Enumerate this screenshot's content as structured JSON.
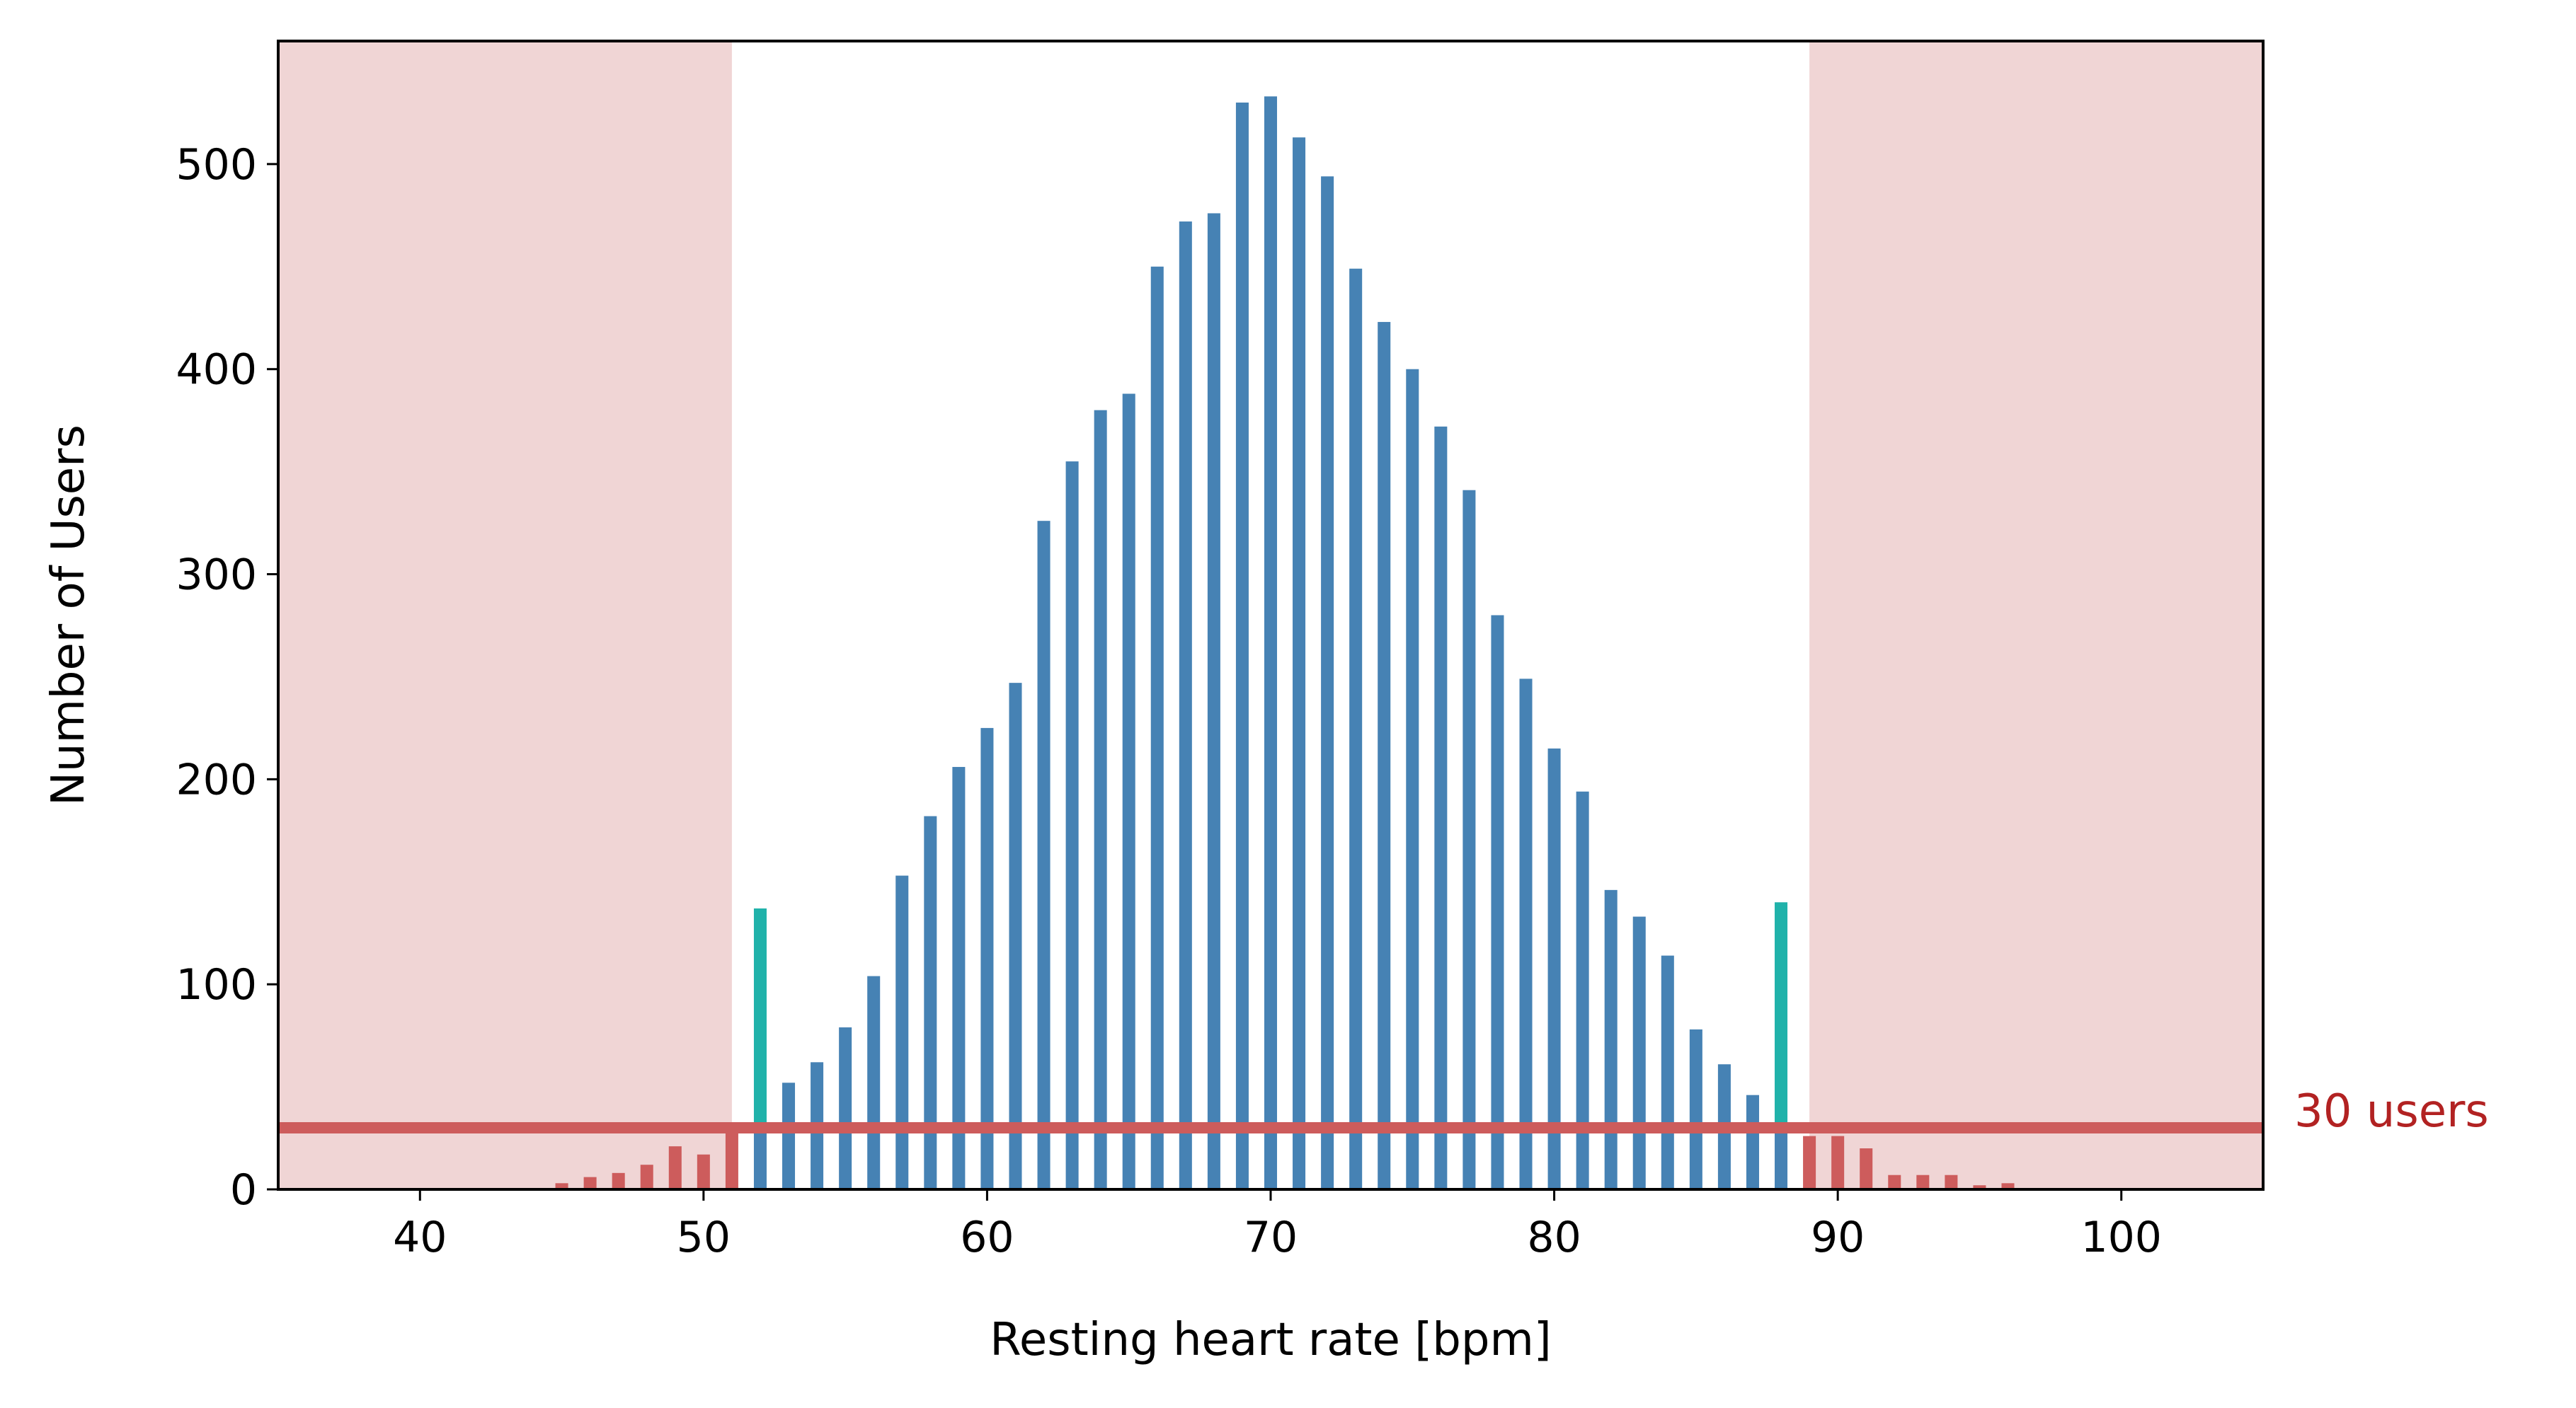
{
  "chart_data": {
    "type": "bar",
    "title": "",
    "xlabel": "Resting heart rate [bpm]",
    "ylabel": "Number of Users",
    "xlim": [
      35,
      105
    ],
    "ylim": [
      0,
      560
    ],
    "xticks": [
      40,
      50,
      60,
      70,
      80,
      90,
      100
    ],
    "yticks": [
      0,
      100,
      200,
      300,
      400,
      500
    ],
    "grid": false,
    "x": [
      45,
      46,
      47,
      48,
      49,
      50,
      51,
      52,
      53,
      54,
      55,
      56,
      57,
      58,
      59,
      60,
      61,
      62,
      63,
      64,
      65,
      66,
      67,
      68,
      69,
      70,
      71,
      72,
      73,
      74,
      75,
      76,
      77,
      78,
      79,
      80,
      81,
      82,
      83,
      84,
      85,
      86,
      87,
      88,
      89,
      90,
      91,
      92,
      93,
      94,
      95,
      96
    ],
    "values": [
      3,
      6,
      8,
      12,
      21,
      17,
      28,
      137,
      52,
      62,
      79,
      104,
      153,
      182,
      206,
      225,
      247,
      326,
      355,
      380,
      388,
      450,
      472,
      476,
      530,
      533,
      513,
      494,
      449,
      423,
      400,
      372,
      341,
      280,
      249,
      215,
      194,
      146,
      133,
      114,
      78,
      61,
      46,
      140,
      26,
      26,
      20,
      7,
      7,
      7,
      2,
      3
    ],
    "bar_colors_by_x": {
      "below_threshold": "#cd5c5c",
      "edge_bins": "#20b2aa",
      "normal": "#4682b4"
    },
    "edge_bins_x": [
      52,
      88
    ],
    "edge_bin_lower_portion_color": "#4682b4",
    "excluded_regions": [
      {
        "from": 35,
        "to": 51,
        "color": "#f0d5d5"
      },
      {
        "from": 89,
        "to": 105,
        "color": "#f0d5d5"
      }
    ],
    "threshold": {
      "value": 30,
      "label": "30 users",
      "color": "#cd5c5c",
      "label_color": "#b22222"
    }
  }
}
